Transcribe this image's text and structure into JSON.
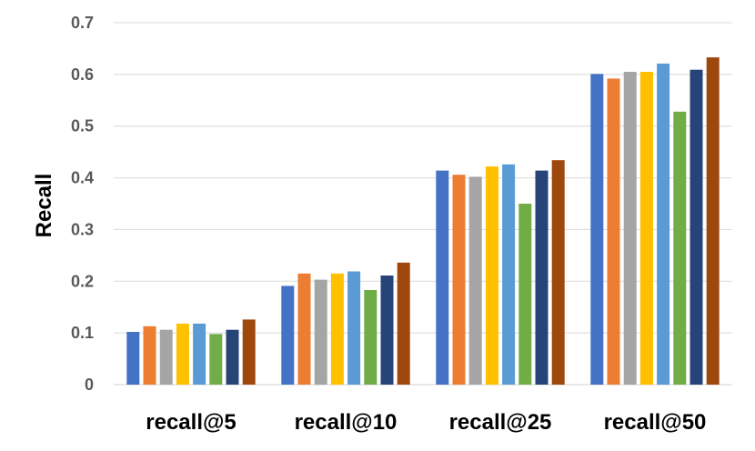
{
  "chart_data": {
    "type": "bar",
    "title": "",
    "xlabel": "",
    "ylabel": "Recall",
    "ylim": [
      0,
      0.7
    ],
    "yticks": [
      0,
      0.1,
      0.2,
      0.3,
      0.4,
      0.5,
      0.6,
      0.7
    ],
    "ytick_labels": [
      "0",
      "0.1",
      "0.2",
      "0.3",
      "0.4",
      "0.5",
      "0.6",
      "0.7"
    ],
    "grid": true,
    "legend": "none",
    "categories": [
      "recall@5",
      "recall@10",
      "recall@25",
      "recall@50"
    ],
    "series": [
      {
        "color": "#4472c4",
        "values": [
          0.102,
          0.191,
          0.414,
          0.601
        ]
      },
      {
        "color": "#ed7d31",
        "values": [
          0.113,
          0.215,
          0.406,
          0.592
        ]
      },
      {
        "color": "#a5a5a5",
        "values": [
          0.106,
          0.203,
          0.402,
          0.605
        ]
      },
      {
        "color": "#ffc000",
        "values": [
          0.118,
          0.215,
          0.422,
          0.605
        ]
      },
      {
        "color": "#5b9bd5",
        "values": [
          0.118,
          0.219,
          0.426,
          0.621
        ]
      },
      {
        "color": "#70ad47",
        "values": [
          0.098,
          0.183,
          0.35,
          0.528
        ]
      },
      {
        "color": "#264478",
        "values": [
          0.106,
          0.211,
          0.414,
          0.609
        ]
      },
      {
        "color": "#9e480e",
        "values": [
          0.126,
          0.236,
          0.434,
          0.633
        ]
      }
    ]
  }
}
